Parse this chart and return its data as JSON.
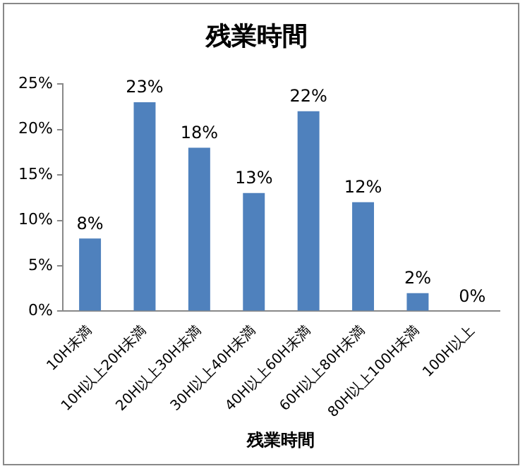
{
  "chart_data": {
    "type": "bar",
    "title": "残業時間",
    "xlabel": "残業時間",
    "categories": [
      "10H未満",
      "10H以上20H未満",
      "20H以上30H未満",
      "30H以上40H未満",
      "40H以上60H未満",
      "60H以上80H未満",
      "80H以上100H未満",
      "100H以上"
    ],
    "values": [
      8,
      23,
      18,
      13,
      22,
      12,
      2,
      0
    ],
    "value_labels": [
      "8%",
      "23%",
      "18%",
      "13%",
      "22%",
      "12%",
      "2%",
      "0%"
    ],
    "color": "#4f81bd",
    "ylim": [
      0,
      25
    ],
    "yticks": [
      {
        "value": 0,
        "label": "0%"
      },
      {
        "value": 5,
        "label": "5%"
      },
      {
        "value": 10,
        "label": "10%"
      },
      {
        "value": 15,
        "label": "15%"
      },
      {
        "value": 20,
        "label": "20%"
      },
      {
        "value": 25,
        "label": "25%"
      }
    ],
    "grid": false,
    "legend": false
  }
}
